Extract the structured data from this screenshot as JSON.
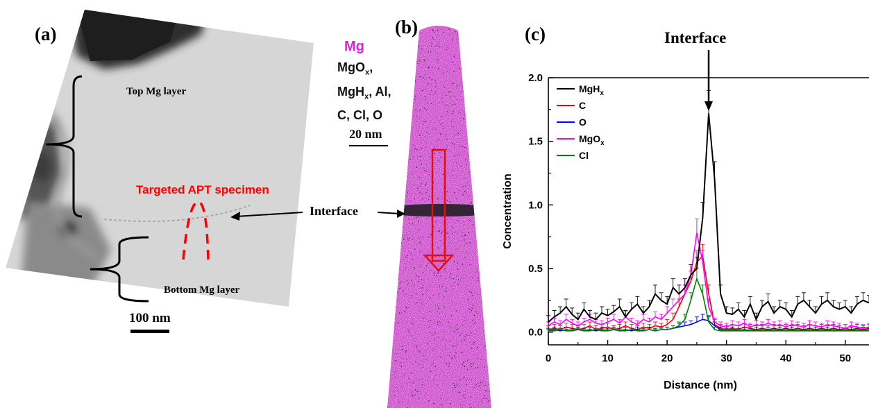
{
  "panels": {
    "a": {
      "label": "(a)",
      "top_layer": "Top Mg layer",
      "bottom_layer": "Bottom Mg layer",
      "target": "Targeted APT specimen",
      "scale_bar": "100 nm",
      "interface": "Interface"
    },
    "b": {
      "label": "(b)",
      "legend_mg": "Mg",
      "legend_others": [
        "MgO",
        "x",
        ",",
        "MgH",
        "x",
        ", Al,",
        "C, Cl, O"
      ],
      "scale_bar": "20 nm",
      "colors": {
        "mg": "#e020e0",
        "others": "#111111",
        "arrow": "#e01010"
      }
    },
    "c": {
      "label": "(c)",
      "interface": "Interface"
    }
  },
  "chart_data": {
    "type": "line",
    "xlabel": "Distance (nm)",
    "ylabel": "Concentration",
    "xlim": [
      0,
      54
    ],
    "ylim": [
      -0.1,
      2.0
    ],
    "xticks": [
      "0",
      "10",
      "20",
      "30",
      "40",
      "50"
    ],
    "yticks": [
      "0.0",
      "0.5",
      "1.0",
      "1.5",
      "2.0"
    ],
    "legend_placement": "top-left",
    "x": [
      0,
      1,
      2,
      3,
      4,
      5,
      6,
      7,
      8,
      9,
      10,
      11,
      12,
      13,
      14,
      15,
      16,
      17,
      18,
      19,
      20,
      21,
      22,
      23,
      24,
      25,
      26,
      27,
      28,
      29,
      30,
      31,
      32,
      33,
      34,
      35,
      36,
      37,
      38,
      39,
      40,
      41,
      42,
      43,
      44,
      45,
      46,
      47,
      48,
      49,
      50,
      51,
      52,
      53,
      54
    ],
    "series": [
      {
        "name": "MgH",
        "name_sub": "x",
        "color": "#000000",
        "values": [
          0.08,
          0.12,
          0.15,
          0.2,
          0.14,
          0.1,
          0.18,
          0.12,
          0.1,
          0.15,
          0.13,
          0.16,
          0.2,
          0.12,
          0.18,
          0.22,
          0.15,
          0.2,
          0.3,
          0.25,
          0.22,
          0.35,
          0.3,
          0.35,
          0.45,
          0.5,
          0.9,
          1.72,
          1.2,
          0.3,
          0.15,
          0.14,
          0.18,
          0.12,
          0.22,
          0.1,
          0.2,
          0.24,
          0.15,
          0.2,
          0.18,
          0.12,
          0.22,
          0.25,
          0.2,
          0.15,
          0.22,
          0.25,
          0.2,
          0.18,
          0.2,
          0.15,
          0.22,
          0.25,
          0.23
        ],
        "errors": [
          0.05,
          0.05,
          0.05,
          0.06,
          0.05,
          0.05,
          0.05,
          0.05,
          0.05,
          0.05,
          0.05,
          0.05,
          0.06,
          0.05,
          0.05,
          0.06,
          0.05,
          0.05,
          0.07,
          0.06,
          0.06,
          0.07,
          0.07,
          0.07,
          0.08,
          0.09,
          0.12,
          0.18,
          0.14,
          0.07,
          0.05,
          0.05,
          0.05,
          0.05,
          0.06,
          0.05,
          0.05,
          0.06,
          0.05,
          0.05,
          0.05,
          0.05,
          0.06,
          0.06,
          0.05,
          0.05,
          0.06,
          0.06,
          0.05,
          0.05,
          0.05,
          0.05,
          0.06,
          0.06,
          0.06
        ]
      },
      {
        "name": "C",
        "color": "#ff0000",
        "values": [
          0.02,
          0.03,
          0.02,
          0.04,
          0.03,
          0.02,
          0.03,
          0.05,
          0.02,
          0.03,
          0.04,
          0.02,
          0.03,
          0.05,
          0.03,
          0.02,
          0.04,
          0.03,
          0.05,
          0.04,
          0.06,
          0.1,
          0.2,
          0.3,
          0.4,
          0.55,
          0.6,
          0.3,
          0.06,
          0.03,
          0.02,
          0.03,
          0.02,
          0.04,
          0.03,
          0.02,
          0.03,
          0.02,
          0.03,
          0.02,
          0.03,
          0.02,
          0.03,
          0.02,
          0.03,
          0.02,
          0.03,
          0.02,
          0.03,
          0.02,
          0.03,
          0.02,
          0.03,
          0.02,
          0.03
        ],
        "errors": [
          0.03,
          0.03,
          0.03,
          0.03,
          0.03,
          0.03,
          0.03,
          0.03,
          0.03,
          0.03,
          0.03,
          0.03,
          0.03,
          0.03,
          0.03,
          0.03,
          0.03,
          0.03,
          0.03,
          0.03,
          0.04,
          0.05,
          0.06,
          0.07,
          0.08,
          0.09,
          0.09,
          0.07,
          0.04,
          0.03,
          0.03,
          0.03,
          0.03,
          0.03,
          0.03,
          0.03,
          0.03,
          0.03,
          0.03,
          0.03,
          0.03,
          0.03,
          0.03,
          0.03,
          0.03,
          0.03,
          0.03,
          0.03,
          0.03,
          0.03,
          0.03,
          0.03,
          0.03,
          0.03,
          0.03
        ]
      },
      {
        "name": "O",
        "color": "#0000ff",
        "values": [
          0.01,
          0.02,
          0.01,
          0.02,
          0.01,
          0.02,
          0.01,
          0.02,
          0.01,
          0.02,
          0.01,
          0.02,
          0.01,
          0.02,
          0.01,
          0.02,
          0.01,
          0.02,
          0.01,
          0.02,
          0.02,
          0.03,
          0.04,
          0.05,
          0.06,
          0.08,
          0.1,
          0.09,
          0.05,
          0.02,
          0.01,
          0.02,
          0.01,
          0.02,
          0.01,
          0.02,
          0.01,
          0.02,
          0.01,
          0.02,
          0.01,
          0.02,
          0.01,
          0.02,
          0.01,
          0.02,
          0.01,
          0.02,
          0.01,
          0.02,
          0.01,
          0.02,
          0.01,
          0.02,
          0.01
        ],
        "errors": [
          0.02,
          0.02,
          0.02,
          0.02,
          0.02,
          0.02,
          0.02,
          0.02,
          0.02,
          0.02,
          0.02,
          0.02,
          0.02,
          0.02,
          0.02,
          0.02,
          0.02,
          0.02,
          0.02,
          0.02,
          0.02,
          0.02,
          0.03,
          0.03,
          0.03,
          0.04,
          0.04,
          0.04,
          0.03,
          0.02,
          0.02,
          0.02,
          0.02,
          0.02,
          0.02,
          0.02,
          0.02,
          0.02,
          0.02,
          0.02,
          0.02,
          0.02,
          0.02,
          0.02,
          0.02,
          0.02,
          0.02,
          0.02,
          0.02,
          0.02,
          0.02,
          0.02,
          0.02,
          0.02,
          0.02
        ]
      },
      {
        "name": "MgO",
        "name_sub": "x",
        "color": "#ff00ff",
        "values": [
          0.05,
          0.08,
          0.06,
          0.1,
          0.07,
          0.05,
          0.08,
          0.1,
          0.07,
          0.06,
          0.08,
          0.1,
          0.07,
          0.12,
          0.08,
          0.06,
          0.1,
          0.08,
          0.12,
          0.1,
          0.15,
          0.2,
          0.25,
          0.3,
          0.45,
          0.78,
          0.55,
          0.2,
          0.08,
          0.05,
          0.04,
          0.06,
          0.05,
          0.07,
          0.04,
          0.06,
          0.05,
          0.07,
          0.05,
          0.06,
          0.04,
          0.06,
          0.05,
          0.04,
          0.06,
          0.05,
          0.04,
          0.06,
          0.05,
          0.04,
          0.03,
          0.05,
          0.04,
          0.03,
          0.04
        ],
        "errors": [
          0.03,
          0.03,
          0.03,
          0.04,
          0.03,
          0.03,
          0.03,
          0.04,
          0.03,
          0.03,
          0.03,
          0.04,
          0.03,
          0.04,
          0.03,
          0.03,
          0.04,
          0.03,
          0.04,
          0.04,
          0.05,
          0.06,
          0.06,
          0.07,
          0.08,
          0.11,
          0.09,
          0.06,
          0.03,
          0.03,
          0.03,
          0.03,
          0.03,
          0.03,
          0.03,
          0.03,
          0.03,
          0.03,
          0.03,
          0.03,
          0.03,
          0.03,
          0.03,
          0.03,
          0.03,
          0.03,
          0.03,
          0.03,
          0.03,
          0.03,
          0.03,
          0.03,
          0.03,
          0.03,
          0.03
        ]
      },
      {
        "name": "Cl",
        "color": "#008000",
        "values": [
          0.01,
          0.01,
          0.02,
          0.01,
          0.01,
          0.02,
          0.01,
          0.01,
          0.02,
          0.01,
          0.01,
          0.02,
          0.01,
          0.01,
          0.02,
          0.01,
          0.01,
          0.02,
          0.01,
          0.02,
          0.02,
          0.03,
          0.05,
          0.1,
          0.25,
          0.42,
          0.3,
          0.08,
          0.02,
          0.01,
          0.01,
          0.01,
          0.01,
          0.01,
          0.01,
          0.01,
          0.01,
          0.01,
          0.01,
          0.01,
          0.01,
          0.01,
          0.01,
          0.01,
          0.01,
          0.01,
          0.01,
          0.01,
          0.01,
          0.01,
          0.01,
          0.01,
          0.01,
          0.01,
          0.01
        ],
        "errors": [
          0.01,
          0.01,
          0.01,
          0.01,
          0.01,
          0.01,
          0.01,
          0.01,
          0.01,
          0.01,
          0.01,
          0.01,
          0.01,
          0.01,
          0.01,
          0.01,
          0.01,
          0.01,
          0.01,
          0.01,
          0.02,
          0.02,
          0.03,
          0.04,
          0.06,
          0.08,
          0.07,
          0.04,
          0.02,
          0.01,
          0.01,
          0.01,
          0.01,
          0.01,
          0.01,
          0.01,
          0.01,
          0.01,
          0.01,
          0.01,
          0.01,
          0.01,
          0.01,
          0.01,
          0.01,
          0.01,
          0.01,
          0.01,
          0.01,
          0.01,
          0.01,
          0.01,
          0.01,
          0.01,
          0.01
        ]
      }
    ]
  }
}
